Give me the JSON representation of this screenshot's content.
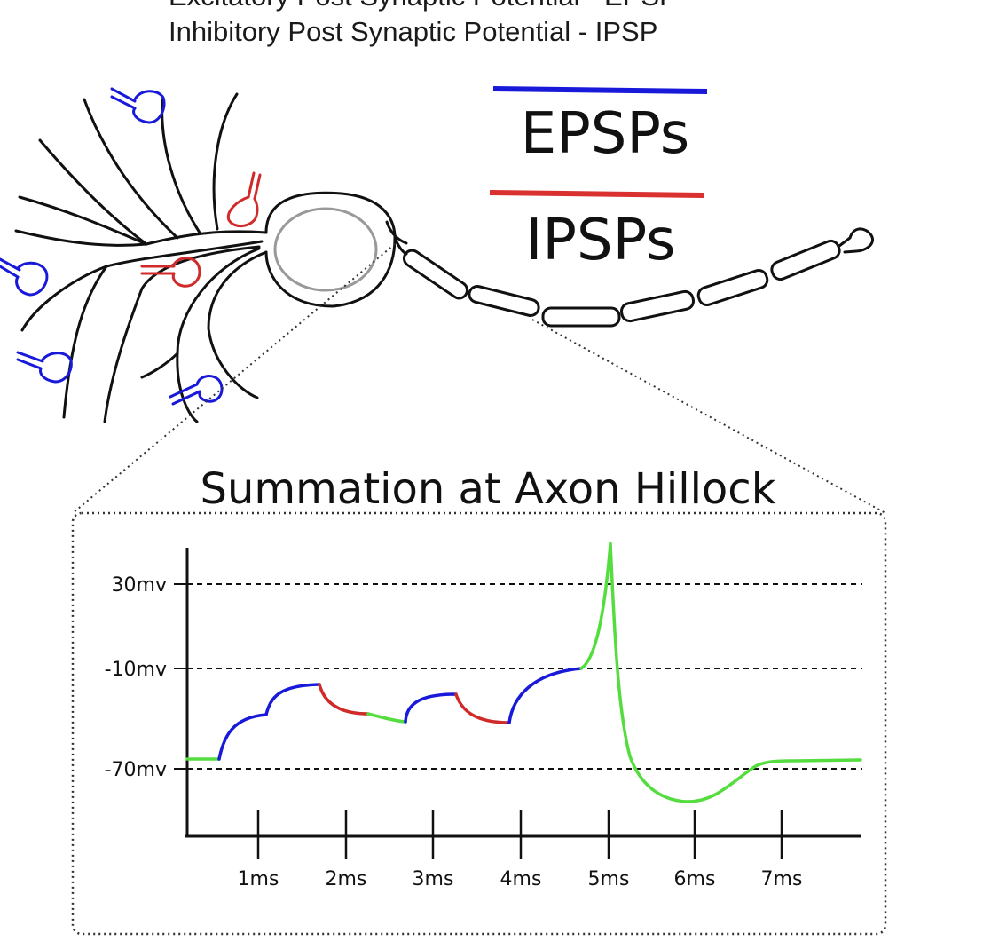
{
  "header": {
    "line1": "Excitatory Post Synaptic Potential - EPSP",
    "line2": "Inhibitory Post Synaptic Potential - IPSP"
  },
  "legend": {
    "epsp_label": "EPSPs",
    "ipsp_label": "IPSPs",
    "epsp_color": "#1919d9",
    "ipsp_color": "#d93030"
  },
  "colors": {
    "epsp": "#1919d9",
    "ipsp": "#d02a2a",
    "neutral": "#55dd40",
    "neuron": "#111111",
    "soma_nucleus": "#999999"
  },
  "chart_data": {
    "type": "line",
    "title": "Summation at Axon Hillock",
    "y_ticks": [
      "30mv",
      "-10mv",
      "-70mv"
    ],
    "x_ticks": [
      "1ms",
      "2ms",
      "3ms",
      "4ms",
      "5ms",
      "6ms",
      "7ms"
    ],
    "dashed_levels": [
      "30mv",
      "-10mv",
      "-70mv"
    ],
    "segments": [
      {
        "kind": "rest",
        "color": "neutral"
      },
      {
        "kind": "EPSP",
        "color": "epsp"
      },
      {
        "kind": "EPSP",
        "color": "epsp"
      },
      {
        "kind": "IPSP",
        "color": "ipsp"
      },
      {
        "kind": "decay",
        "color": "neutral"
      },
      {
        "kind": "EPSP",
        "color": "epsp"
      },
      {
        "kind": "IPSP",
        "color": "ipsp"
      },
      {
        "kind": "EPSP",
        "color": "epsp"
      },
      {
        "kind": "action-potential",
        "color": "neutral"
      }
    ]
  }
}
